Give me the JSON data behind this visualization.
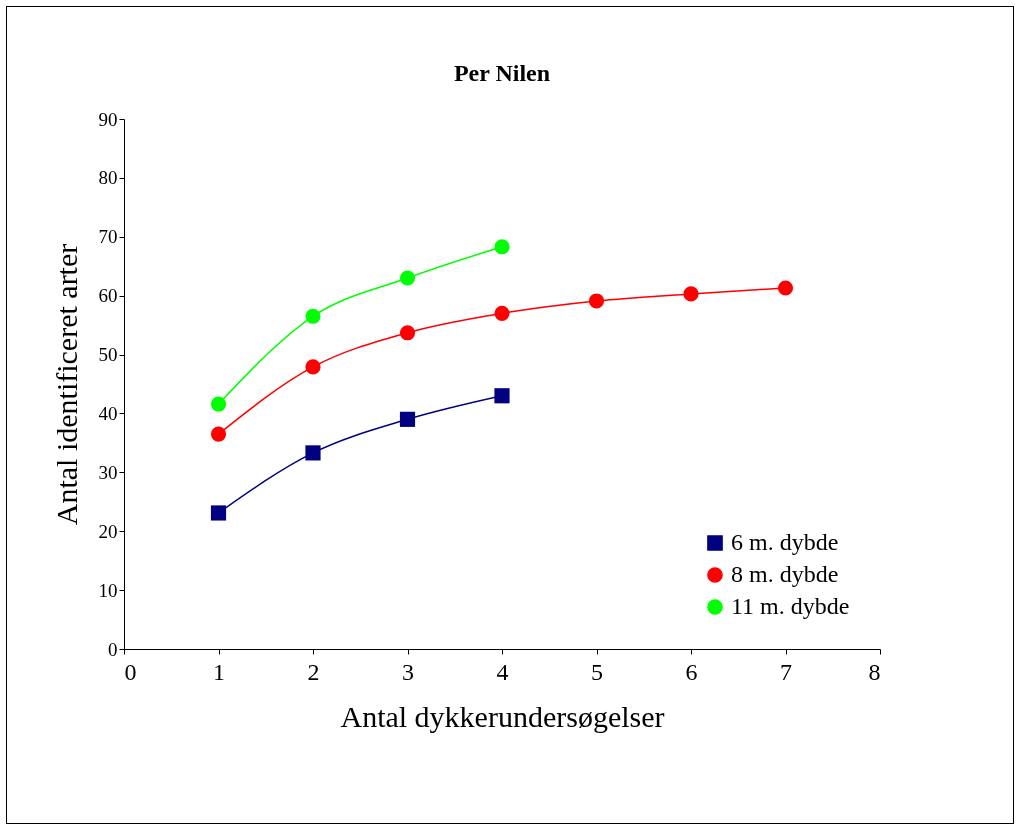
{
  "chart_data": {
    "type": "line",
    "title": "Per Nilen",
    "xlabel": "Antal dykkerundersøgelser",
    "ylabel": "Antal identificeret arter",
    "xlim": [
      0,
      8
    ],
    "xticks": [
      0,
      1,
      2,
      3,
      4,
      5,
      6,
      7,
      8
    ],
    "ylim": [
      0,
      90
    ],
    "yticks": [
      0,
      10,
      20,
      30,
      40,
      50,
      60,
      70,
      80,
      90
    ],
    "grid": false,
    "legend": "bottom right",
    "series": [
      {
        "name": "6 m. dybde",
        "color": "#000080",
        "marker": "square",
        "x": [
          1,
          2,
          3,
          4
        ],
        "values": [
          23.1,
          33.3,
          39.0,
          43.0
        ]
      },
      {
        "name": "8 m. dybde",
        "color": "#ff0000",
        "marker": "circle",
        "x": [
          1,
          2,
          3,
          4,
          5,
          6,
          7
        ],
        "values": [
          36.5,
          47.9,
          53.7,
          57.0,
          59.1,
          60.3,
          61.3
        ]
      },
      {
        "name": "11 m. dybde",
        "color": "#00ff00",
        "marker": "circle",
        "x": [
          1,
          2,
          3,
          4
        ],
        "values": [
          41.6,
          56.5,
          63.0,
          68.3
        ]
      }
    ]
  }
}
